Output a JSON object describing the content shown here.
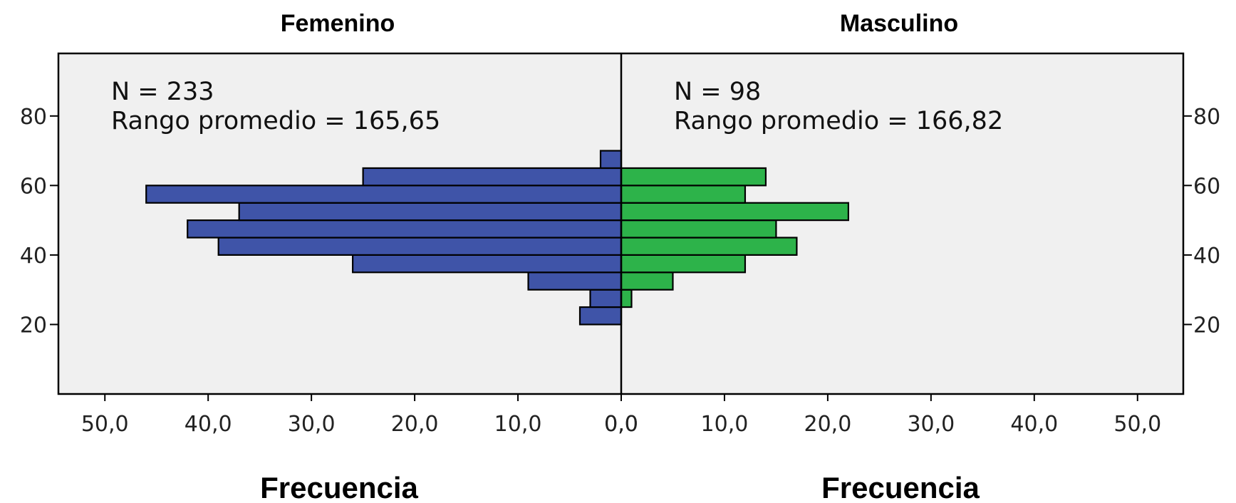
{
  "chart_data": {
    "type": "bar",
    "orientation": "horizontal-back-to-back",
    "bin_width": 5,
    "panels": [
      {
        "title": "Femenino",
        "n_text": "N = 233",
        "mean_rank_text": "Rango promedio = 165,65",
        "color": "#3f54a8",
        "bins": [
          {
            "y_low": 20,
            "y_high": 25,
            "frequency": 4
          },
          {
            "y_low": 25,
            "y_high": 30,
            "frequency": 3
          },
          {
            "y_low": 30,
            "y_high": 35,
            "frequency": 9
          },
          {
            "y_low": 35,
            "y_high": 40,
            "frequency": 26
          },
          {
            "y_low": 40,
            "y_high": 45,
            "frequency": 39
          },
          {
            "y_low": 45,
            "y_high": 50,
            "frequency": 42
          },
          {
            "y_low": 50,
            "y_high": 55,
            "frequency": 37
          },
          {
            "y_low": 55,
            "y_high": 60,
            "frequency": 46
          },
          {
            "y_low": 60,
            "y_high": 65,
            "frequency": 25
          },
          {
            "y_low": 65,
            "y_high": 70,
            "frequency": 2
          }
        ]
      },
      {
        "title": "Masculino",
        "n_text": "N = 98",
        "mean_rank_text": "Rango promedio = 166,82",
        "color": "#2db34a",
        "bins": [
          {
            "y_low": 25,
            "y_high": 30,
            "frequency": 1
          },
          {
            "y_low": 30,
            "y_high": 35,
            "frequency": 5
          },
          {
            "y_low": 35,
            "y_high": 40,
            "frequency": 12
          },
          {
            "y_low": 40,
            "y_high": 45,
            "frequency": 17
          },
          {
            "y_low": 45,
            "y_high": 50,
            "frequency": 15
          },
          {
            "y_low": 50,
            "y_high": 55,
            "frequency": 22
          },
          {
            "y_low": 55,
            "y_high": 60,
            "frequency": 12
          },
          {
            "y_low": 60,
            "y_high": 65,
            "frequency": 14
          }
        ]
      }
    ],
    "y_ticks": [
      20,
      40,
      60,
      80
    ],
    "y_tick_labels": [
      "20",
      "40",
      "60",
      "80"
    ],
    "ylim": [
      0,
      98
    ],
    "x_ticks_left": [
      "50,0",
      "40,0",
      "30,0",
      "20,0",
      "10,0",
      "0,0"
    ],
    "x_ticks_right": [
      "0,0",
      "10,0",
      "20,0",
      "30,0",
      "40,0",
      "50,0"
    ],
    "xlim_each_side": [
      0,
      54.5
    ],
    "xlabel_left": "Frecuencia",
    "xlabel_right": "Frecuencia",
    "plot_background": "#f0f0f0",
    "bar_edge_color": "#000000",
    "grid": false,
    "legend": "none"
  }
}
